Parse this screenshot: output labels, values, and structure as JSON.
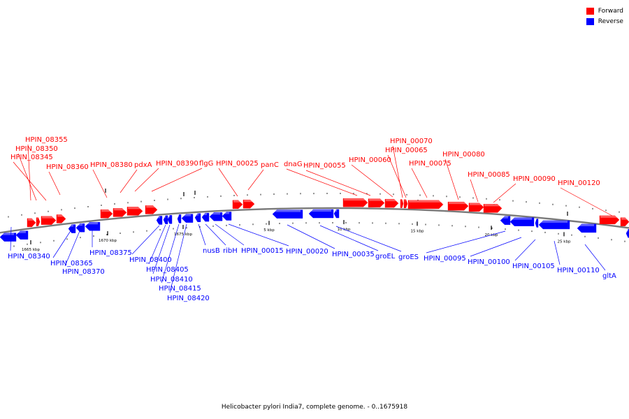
{
  "colors": {
    "forward": "#ff0000",
    "reverse": "#0000ff",
    "backbone": "#7a7a7a"
  },
  "legend": {
    "forward": "Forward",
    "reverse": "Reverse"
  },
  "caption": "Helicobacter pylori India7, complete genome. - 0..1675918",
  "ticks": [
    "1665 kbp",
    "1670 kbp",
    "1675 kbp",
    "5 kbp",
    "10 kbp",
    "15 kbp",
    "20 kbp",
    "25 kbp"
  ],
  "forward_labels": [
    "HPIN_08355",
    "HPIN_08350",
    "HPIN_08345",
    "HPIN_08360",
    "HPIN_08380",
    "pdxA",
    "HPIN_08390",
    "flgG",
    "HPIN_00025",
    "panC",
    "dnaG",
    "HPIN_00055",
    "HPIN_00060",
    "HPIN_00070",
    "HPIN_00065",
    "HPIN_00075",
    "HPIN_00080",
    "HPIN_00085",
    "HPIN_00090",
    "HPIN_00120"
  ],
  "reverse_labels": [
    "HPIN_08340",
    "HPIN_08365",
    "HPIN_08370",
    "HPIN_08375",
    "HPIN_08400",
    "HPIN_08405",
    "HPIN_08410",
    "HPIN_08415",
    "HPIN_08420",
    "nusB",
    "ribH",
    "HPIN_00015",
    "HPIN_00020",
    "HPIN_00035",
    "groEL",
    "groES",
    "HPIN_00095",
    "HPIN_00100",
    "HPIN_00105",
    "HPIN_00110",
    "gltA"
  ]
}
